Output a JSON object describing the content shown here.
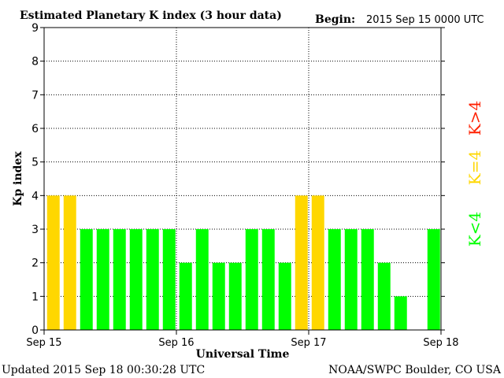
{
  "header": {
    "title": "Estimated Planetary K index (3 hour data)",
    "begin_label": "Begin:",
    "begin_value": "2015 Sep 15 0000 UTC"
  },
  "footer": {
    "updated": "Updated 2015 Sep 18 00:30:28 UTC",
    "credit": "NOAA/SWPC Boulder, CO USA"
  },
  "legend": {
    "k_gt4": "K>4",
    "k_eq4": "K=4",
    "k_lt4": "K<4"
  },
  "colors": {
    "green": "#00ff00",
    "yellow": "#ffd700",
    "red": "#ff2000",
    "axis": "#000000",
    "grid": "#000000"
  },
  "chart_data": {
    "type": "bar",
    "title": "Estimated Planetary K index (3 hour data)",
    "xlabel": "Universal Time",
    "ylabel": "Kp index",
    "ylim": [
      0,
      9
    ],
    "yticks": [
      0,
      1,
      2,
      3,
      4,
      5,
      6,
      7,
      8,
      9
    ],
    "x_tick_labels": [
      "Sep 15",
      "Sep 16",
      "Sep 17",
      "Sep 18"
    ],
    "slots": 24,
    "values": [
      4,
      4,
      3,
      3,
      3,
      3,
      3,
      3,
      2,
      3,
      2,
      2,
      3,
      3,
      2,
      4,
      4,
      3,
      3,
      3,
      2,
      1,
      null,
      3
    ],
    "grid": true
  }
}
